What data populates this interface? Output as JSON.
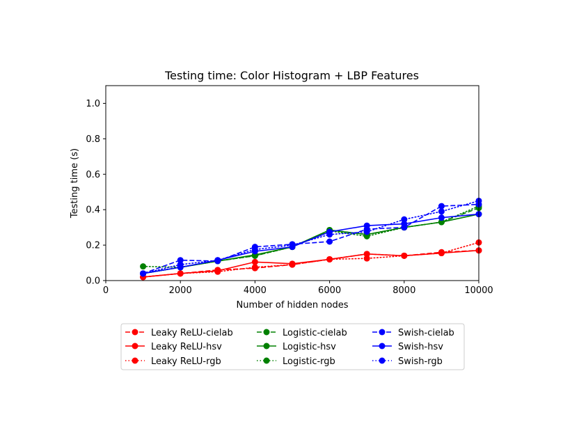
{
  "chart_data": {
    "type": "line",
    "title": "Testing time: Color Histogram + LBP Features",
    "xlabel": "Number of hidden nodes",
    "ylabel": "Testing time (s)",
    "xlim": [
      0,
      10000
    ],
    "ylim": [
      0,
      1.1
    ],
    "xticks": [
      0,
      2000,
      4000,
      6000,
      8000,
      10000
    ],
    "yticks": [
      0.0,
      0.2,
      0.4,
      0.6,
      0.8,
      1.0
    ],
    "xtick_labels": [
      "0",
      "2000",
      "4000",
      "6000",
      "8000",
      "10000"
    ],
    "ytick_labels": [
      "0.0",
      "0.2",
      "0.4",
      "0.6",
      "0.8",
      "1.0"
    ],
    "grid": false,
    "legend_position": "below the plot, 3 columns",
    "x": [
      1000,
      2000,
      3000,
      4000,
      5000,
      6000,
      7000,
      8000,
      9000,
      10000
    ],
    "series": [
      {
        "name": "Leaky ReLU-cielab",
        "color": "#ff0000",
        "linestyle": "dashed",
        "values": [
          0.02,
          0.04,
          0.06,
          0.07,
          0.09,
          0.12,
          0.15,
          0.14,
          0.16,
          0.17
        ]
      },
      {
        "name": "Leaky ReLU-hsv",
        "color": "#ff0000",
        "linestyle": "solid",
        "values": [
          0.02,
          0.04,
          0.055,
          0.105,
          0.095,
          0.12,
          0.15,
          0.14,
          0.155,
          0.17
        ]
      },
      {
        "name": "Leaky ReLU-rgb",
        "color": "#ff0000",
        "linestyle": "dotted",
        "values": [
          0.02,
          0.04,
          0.05,
          0.075,
          0.09,
          0.12,
          0.125,
          0.14,
          0.155,
          0.215
        ]
      },
      {
        "name": "Logistic-cielab",
        "color": "#008000",
        "linestyle": "dashed",
        "values": [
          0.04,
          0.075,
          0.11,
          0.14,
          0.19,
          0.285,
          0.26,
          0.3,
          0.33,
          0.41
        ]
      },
      {
        "name": "Logistic-hsv",
        "color": "#008000",
        "linestyle": "solid",
        "values": [
          0.04,
          0.075,
          0.11,
          0.145,
          0.19,
          0.285,
          0.26,
          0.3,
          0.33,
          0.375
        ]
      },
      {
        "name": "Logistic-rgb",
        "color": "#008000",
        "linestyle": "dotted",
        "values": [
          0.08,
          0.075,
          0.11,
          0.14,
          0.19,
          0.28,
          0.25,
          0.3,
          0.33,
          0.42
        ]
      },
      {
        "name": "Swish-cielab",
        "color": "#0000ff",
        "linestyle": "dashed",
        "values": [
          0.04,
          0.115,
          0.11,
          0.19,
          0.205,
          0.22,
          0.29,
          0.3,
          0.42,
          0.43
        ]
      },
      {
        "name": "Swish-hsv",
        "color": "#0000ff",
        "linestyle": "solid",
        "values": [
          0.04,
          0.075,
          0.115,
          0.165,
          0.19,
          0.275,
          0.31,
          0.32,
          0.355,
          0.375
        ]
      },
      {
        "name": "Swish-rgb",
        "color": "#0000ff",
        "linestyle": "dotted",
        "values": [
          0.04,
          0.09,
          0.115,
          0.175,
          0.2,
          0.26,
          0.275,
          0.345,
          0.39,
          0.45
        ]
      }
    ]
  }
}
